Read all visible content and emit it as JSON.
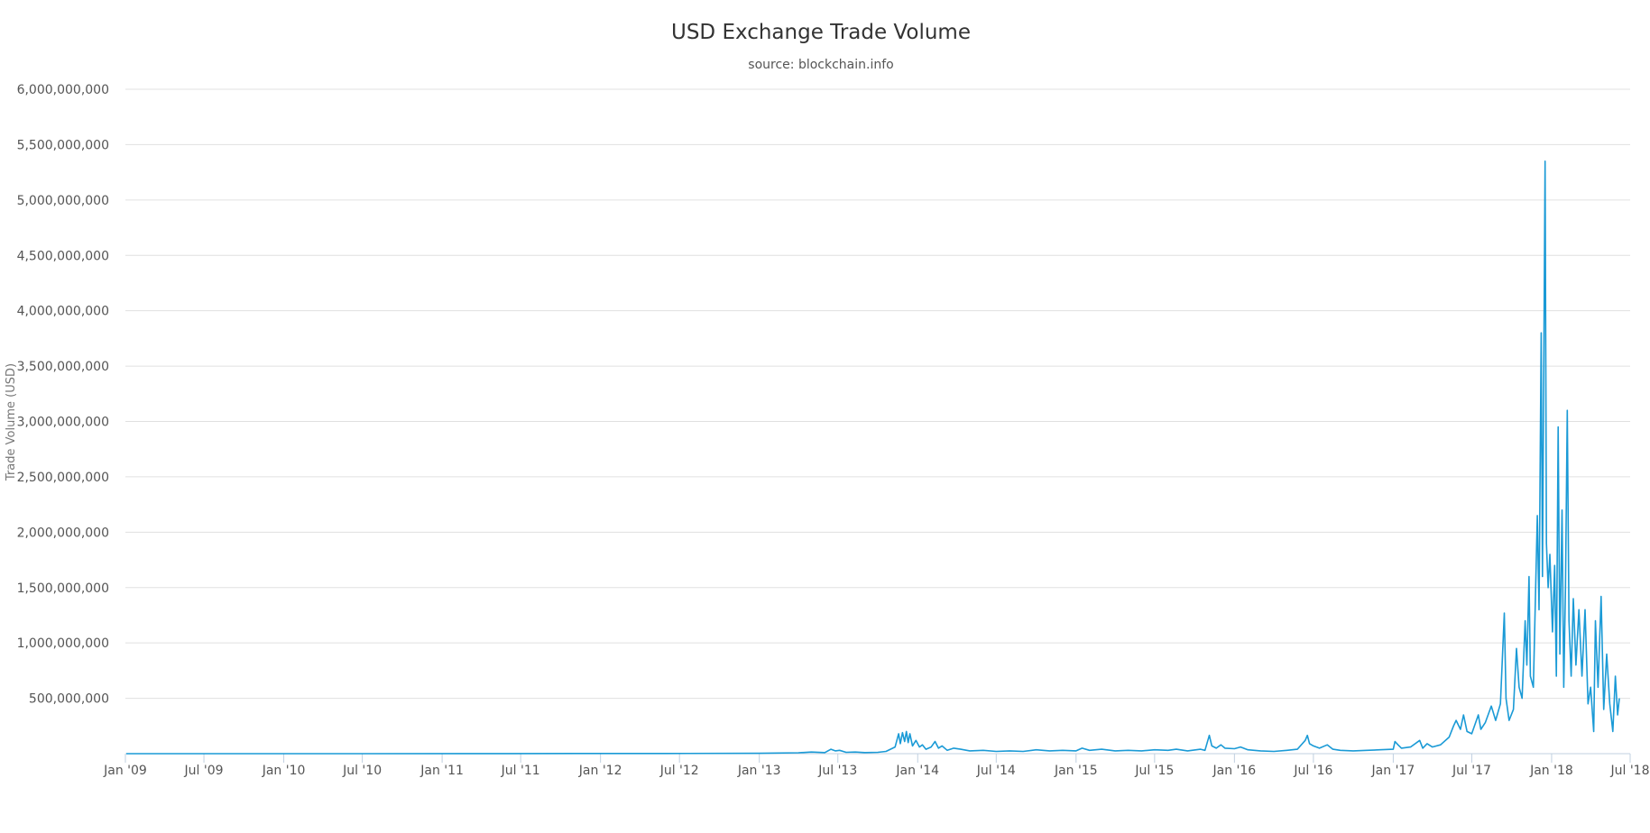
{
  "chart_data": {
    "type": "line",
    "title": "USD Exchange Trade Volume",
    "subtitle": "source: blockchain.info",
    "ylabel": "Trade Volume (USD)",
    "xlabel": "",
    "ylim": [
      0,
      6000000000
    ],
    "xlim": [
      "2009-01-01",
      "2018-07-01"
    ],
    "grid": true,
    "colors": {
      "series": "#1a9ad6"
    },
    "yticks": [
      {
        "value": 500000000,
        "label": "500,000,000"
      },
      {
        "value": 1000000000,
        "label": "1,000,000,000"
      },
      {
        "value": 1500000000,
        "label": "1,500,000,000"
      },
      {
        "value": 2000000000,
        "label": "2,000,000,000"
      },
      {
        "value": 2500000000,
        "label": "2,500,000,000"
      },
      {
        "value": 3000000000,
        "label": "3,000,000,000"
      },
      {
        "value": 3500000000,
        "label": "3,500,000,000"
      },
      {
        "value": 4000000000,
        "label": "4,000,000,000"
      },
      {
        "value": 4500000000,
        "label": "4,500,000,000"
      },
      {
        "value": 5000000000,
        "label": "5,000,000,000"
      },
      {
        "value": 5500000000,
        "label": "5,500,000,000"
      },
      {
        "value": 6000000000,
        "label": "6,000,000,000"
      }
    ],
    "xticks": [
      {
        "date": "2009-01-01",
        "label": "Jan '09"
      },
      {
        "date": "2009-07-01",
        "label": "Jul '09"
      },
      {
        "date": "2010-01-01",
        "label": "Jan '10"
      },
      {
        "date": "2010-07-01",
        "label": "Jul '10"
      },
      {
        "date": "2011-01-01",
        "label": "Jan '11"
      },
      {
        "date": "2011-07-01",
        "label": "Jul '11"
      },
      {
        "date": "2012-01-01",
        "label": "Jan '12"
      },
      {
        "date": "2012-07-01",
        "label": "Jul '12"
      },
      {
        "date": "2013-01-01",
        "label": "Jan '13"
      },
      {
        "date": "2013-07-01",
        "label": "Jul '13"
      },
      {
        "date": "2014-01-01",
        "label": "Jan '14"
      },
      {
        "date": "2014-07-01",
        "label": "Jul '14"
      },
      {
        "date": "2015-01-01",
        "label": "Jan '15"
      },
      {
        "date": "2015-07-01",
        "label": "Jul '15"
      },
      {
        "date": "2016-01-01",
        "label": "Jan '16"
      },
      {
        "date": "2016-07-01",
        "label": "Jul '16"
      },
      {
        "date": "2017-01-01",
        "label": "Jan '17"
      },
      {
        "date": "2017-07-01",
        "label": "Jul '17"
      },
      {
        "date": "2018-01-01",
        "label": "Jan '18"
      },
      {
        "date": "2018-07-01",
        "label": "Jul '18"
      }
    ],
    "series": [
      {
        "points": [
          [
            "2009-01-03",
            0
          ],
          [
            "2010-07-01",
            0
          ],
          [
            "2011-06-01",
            1000000
          ],
          [
            "2012-06-01",
            2000000
          ],
          [
            "2013-01-01",
            3000000
          ],
          [
            "2013-04-01",
            8000000
          ],
          [
            "2013-05-01",
            15000000
          ],
          [
            "2013-06-01",
            10000000
          ],
          [
            "2013-06-15",
            40000000
          ],
          [
            "2013-06-25",
            25000000
          ],
          [
            "2013-07-05",
            30000000
          ],
          [
            "2013-07-20",
            12000000
          ],
          [
            "2013-08-10",
            15000000
          ],
          [
            "2013-09-01",
            10000000
          ],
          [
            "2013-10-01",
            12000000
          ],
          [
            "2013-10-20",
            20000000
          ],
          [
            "2013-11-10",
            60000000
          ],
          [
            "2013-11-18",
            180000000
          ],
          [
            "2013-11-22",
            90000000
          ],
          [
            "2013-11-27",
            190000000
          ],
          [
            "2013-12-02",
            110000000
          ],
          [
            "2013-12-06",
            200000000
          ],
          [
            "2013-12-10",
            100000000
          ],
          [
            "2013-12-14",
            180000000
          ],
          [
            "2013-12-20",
            70000000
          ],
          [
            "2013-12-28",
            120000000
          ],
          [
            "2014-01-05",
            60000000
          ],
          [
            "2014-01-12",
            80000000
          ],
          [
            "2014-01-20",
            40000000
          ],
          [
            "2014-02-01",
            60000000
          ],
          [
            "2014-02-10",
            110000000
          ],
          [
            "2014-02-18",
            50000000
          ],
          [
            "2014-02-26",
            70000000
          ],
          [
            "2014-03-10",
            30000000
          ],
          [
            "2014-03-25",
            50000000
          ],
          [
            "2014-04-10",
            40000000
          ],
          [
            "2014-05-01",
            25000000
          ],
          [
            "2014-06-01",
            30000000
          ],
          [
            "2014-07-01",
            20000000
          ],
          [
            "2014-08-01",
            25000000
          ],
          [
            "2014-09-01",
            20000000
          ],
          [
            "2014-10-01",
            35000000
          ],
          [
            "2014-11-01",
            25000000
          ],
          [
            "2014-12-01",
            30000000
          ],
          [
            "2015-01-01",
            25000000
          ],
          [
            "2015-01-15",
            50000000
          ],
          [
            "2015-02-01",
            30000000
          ],
          [
            "2015-03-01",
            40000000
          ],
          [
            "2015-04-01",
            25000000
          ],
          [
            "2015-05-01",
            30000000
          ],
          [
            "2015-06-01",
            25000000
          ],
          [
            "2015-07-01",
            35000000
          ],
          [
            "2015-08-01",
            30000000
          ],
          [
            "2015-08-20",
            40000000
          ],
          [
            "2015-09-15",
            25000000
          ],
          [
            "2015-10-15",
            40000000
          ],
          [
            "2015-10-25",
            30000000
          ],
          [
            "2015-11-04",
            165000000
          ],
          [
            "2015-11-10",
            70000000
          ],
          [
            "2015-11-20",
            50000000
          ],
          [
            "2015-12-01",
            80000000
          ],
          [
            "2015-12-10",
            50000000
          ],
          [
            "2016-01-01",
            45000000
          ],
          [
            "2016-01-15",
            60000000
          ],
          [
            "2016-02-01",
            35000000
          ],
          [
            "2016-03-01",
            25000000
          ],
          [
            "2016-04-01",
            20000000
          ],
          [
            "2016-05-01",
            30000000
          ],
          [
            "2016-05-25",
            40000000
          ],
          [
            "2016-06-12",
            120000000
          ],
          [
            "2016-06-17",
            165000000
          ],
          [
            "2016-06-22",
            90000000
          ],
          [
            "2016-07-01",
            70000000
          ],
          [
            "2016-07-15",
            50000000
          ],
          [
            "2016-08-02",
            80000000
          ],
          [
            "2016-08-15",
            40000000
          ],
          [
            "2016-09-01",
            30000000
          ],
          [
            "2016-10-01",
            25000000
          ],
          [
            "2016-11-01",
            30000000
          ],
          [
            "2016-12-01",
            35000000
          ],
          [
            "2017-01-01",
            40000000
          ],
          [
            "2017-01-05",
            110000000
          ],
          [
            "2017-01-12",
            80000000
          ],
          [
            "2017-01-20",
            50000000
          ],
          [
            "2017-02-10",
            60000000
          ],
          [
            "2017-03-03",
            120000000
          ],
          [
            "2017-03-10",
            50000000
          ],
          [
            "2017-03-20",
            90000000
          ],
          [
            "2017-04-01",
            60000000
          ],
          [
            "2017-04-20",
            80000000
          ],
          [
            "2017-05-10",
            150000000
          ],
          [
            "2017-05-20",
            250000000
          ],
          [
            "2017-05-26",
            300000000
          ],
          [
            "2017-06-05",
            220000000
          ],
          [
            "2017-06-12",
            350000000
          ],
          [
            "2017-06-20",
            200000000
          ],
          [
            "2017-07-01",
            180000000
          ],
          [
            "2017-07-16",
            350000000
          ],
          [
            "2017-07-22",
            220000000
          ],
          [
            "2017-08-01",
            280000000
          ],
          [
            "2017-08-15",
            430000000
          ],
          [
            "2017-08-25",
            300000000
          ],
          [
            "2017-09-05",
            450000000
          ],
          [
            "2017-09-14",
            1270000000
          ],
          [
            "2017-09-18",
            500000000
          ],
          [
            "2017-09-25",
            300000000
          ],
          [
            "2017-10-05",
            400000000
          ],
          [
            "2017-10-12",
            950000000
          ],
          [
            "2017-10-18",
            600000000
          ],
          [
            "2017-10-25",
            500000000
          ],
          [
            "2017-11-01",
            1200000000
          ],
          [
            "2017-11-05",
            800000000
          ],
          [
            "2017-11-10",
            1600000000
          ],
          [
            "2017-11-13",
            700000000
          ],
          [
            "2017-11-20",
            600000000
          ],
          [
            "2017-11-29",
            2150000000
          ],
          [
            "2017-12-03",
            1300000000
          ],
          [
            "2017-12-08",
            3800000000
          ],
          [
            "2017-12-11",
            1600000000
          ],
          [
            "2017-12-17",
            5350000000
          ],
          [
            "2017-12-20",
            1900000000
          ],
          [
            "2017-12-24",
            1500000000
          ],
          [
            "2017-12-28",
            1800000000
          ],
          [
            "2018-01-03",
            1100000000
          ],
          [
            "2018-01-08",
            1700000000
          ],
          [
            "2018-01-12",
            700000000
          ],
          [
            "2018-01-16",
            2950000000
          ],
          [
            "2018-01-20",
            900000000
          ],
          [
            "2018-01-25",
            2200000000
          ],
          [
            "2018-01-29",
            600000000
          ],
          [
            "2018-02-02",
            1500000000
          ],
          [
            "2018-02-06",
            3100000000
          ],
          [
            "2018-02-10",
            1200000000
          ],
          [
            "2018-02-15",
            700000000
          ],
          [
            "2018-02-20",
            1400000000
          ],
          [
            "2018-02-26",
            800000000
          ],
          [
            "2018-03-05",
            1300000000
          ],
          [
            "2018-03-12",
            700000000
          ],
          [
            "2018-03-19",
            1300000000
          ],
          [
            "2018-03-26",
            450000000
          ],
          [
            "2018-04-01",
            600000000
          ],
          [
            "2018-04-08",
            200000000
          ],
          [
            "2018-04-12",
            1200000000
          ],
          [
            "2018-04-18",
            600000000
          ],
          [
            "2018-04-25",
            1420000000
          ],
          [
            "2018-05-01",
            400000000
          ],
          [
            "2018-05-08",
            900000000
          ],
          [
            "2018-05-15",
            450000000
          ],
          [
            "2018-05-22",
            200000000
          ],
          [
            "2018-05-28",
            700000000
          ],
          [
            "2018-06-02",
            350000000
          ],
          [
            "2018-06-06",
            500000000
          ]
        ]
      }
    ]
  }
}
